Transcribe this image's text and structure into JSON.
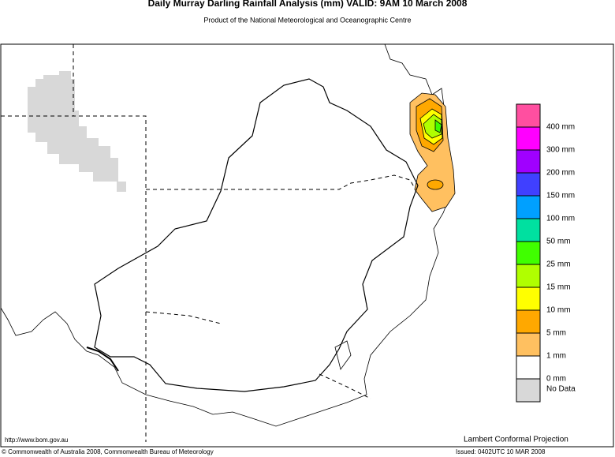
{
  "header": {
    "title": "Daily Murray Darling Rainfall Analysis (mm)  VALID: 9AM 10 March 2008",
    "subtitle": "Product of the National Meteorological and Oceanographic Centre"
  },
  "legend": {
    "items": [
      {
        "label": "400 mm",
        "color": "#ff4fa0"
      },
      {
        "label": "300 mm",
        "color": "#ff00ff"
      },
      {
        "label": "200 mm",
        "color": "#a000ff"
      },
      {
        "label": "150 mm",
        "color": "#4040ff"
      },
      {
        "label": "100 mm",
        "color": "#00a0ff"
      },
      {
        "label": "50 mm",
        "color": "#00e0a0"
      },
      {
        "label": "25 mm",
        "color": "#40ff00"
      },
      {
        "label": "15 mm",
        "color": "#b0ff00"
      },
      {
        "label": "10 mm",
        "color": "#ffff00"
      },
      {
        "label": "5 mm",
        "color": "#ffa800"
      },
      {
        "label": "1 mm",
        "color": "#ffc060"
      },
      {
        "label": "0 mm",
        "color": "#ffffff"
      },
      {
        "label": "No Data",
        "color": "#d8d8d8"
      }
    ]
  },
  "footer": {
    "url": "http://www.bom.gov.au",
    "projection": "Lambert Conformal Projection",
    "copyright": "© Commonwealth of Australia 2008, Commonwealth Bureau of Meteorology",
    "issued": "Issued: 0402UTC 10 MAR 2008"
  }
}
